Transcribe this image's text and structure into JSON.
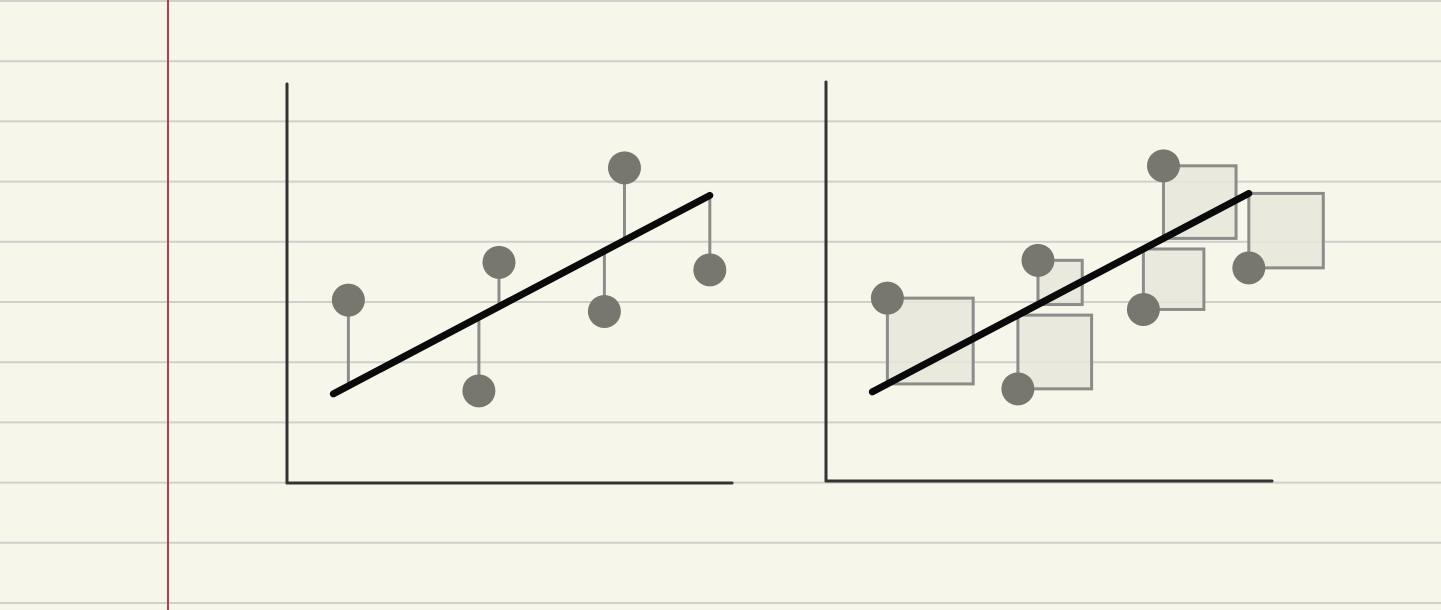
{
  "colors": {
    "paper": "#f7f6ea",
    "rule_line": "#cfcfcb",
    "margin_line": "#c0394a",
    "axis": "#333333",
    "fit_line": "#0a0a0a",
    "point": "#777770",
    "residual": "#8c8c8a",
    "square_fill": "#e6e6da",
    "square_stroke": "#8c8c8a"
  },
  "chart_data": [
    {
      "type": "scatter",
      "variant": "residuals-as-lines",
      "xlim": [
        0,
        10
      ],
      "ylim": [
        0,
        10
      ],
      "fit": {
        "slope": 0.7,
        "intercept": 1.0
      },
      "points": [
        {
          "x": 1.9,
          "y": 4.6
        },
        {
          "x": 4.5,
          "y": 2.2
        },
        {
          "x": 4.9,
          "y": 5.6
        },
        {
          "x": 7.0,
          "y": 4.3
        },
        {
          "x": 7.4,
          "y": 8.1
        },
        {
          "x": 9.1,
          "y": 5.4
        }
      ]
    },
    {
      "type": "scatter",
      "variant": "residuals-as-squares",
      "xlim": [
        0,
        10
      ],
      "ylim": [
        0,
        10
      ],
      "fit": {
        "slope": 0.7,
        "intercept": 1.0
      },
      "points": [
        {
          "x": 1.9,
          "y": 4.6
        },
        {
          "x": 4.5,
          "y": 2.2
        },
        {
          "x": 4.9,
          "y": 5.6
        },
        {
          "x": 7.0,
          "y": 4.3
        },
        {
          "x": 7.4,
          "y": 8.1
        },
        {
          "x": 9.1,
          "y": 5.4
        }
      ]
    }
  ]
}
